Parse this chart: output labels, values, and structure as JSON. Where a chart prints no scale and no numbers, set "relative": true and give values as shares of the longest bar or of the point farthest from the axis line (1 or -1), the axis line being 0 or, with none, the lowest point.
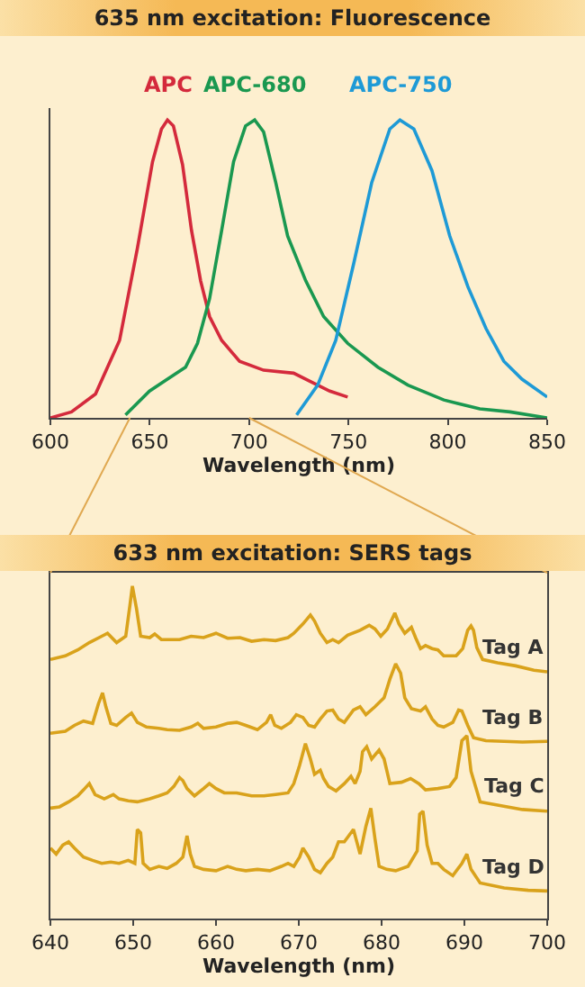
{
  "chart_data": [
    {
      "type": "line",
      "title": "635 nm excitation: Fluorescence",
      "xlabel": "Wavelength (nm)",
      "relative": true,
      "xlim": [
        600,
        850
      ],
      "xticks": [
        600,
        650,
        700,
        750,
        800,
        850
      ],
      "series": [
        {
          "name": "APC",
          "color": "#d42a3c",
          "x": [
            600,
            610.6,
            622.7,
            634.8,
            643.8,
            651.4,
            655.9,
            658.9,
            661.9,
            666.5,
            671,
            675.6,
            680.1,
            686.2,
            695.2,
            707.3,
            722.4,
            731.5,
            740.6,
            749.6
          ],
          "values": [
            0,
            0.02,
            0.08,
            0.26,
            0.57,
            0.86,
            0.97,
            1,
            0.98,
            0.85,
            0.63,
            0.46,
            0.34,
            0.26,
            0.19,
            0.16,
            0.15,
            0.12,
            0.09,
            0.07
          ]
        },
        {
          "name": "APC-680",
          "color": "#1a9850",
          "x": [
            637.8,
            649.9,
            658.9,
            668,
            674,
            680.1,
            686.2,
            692.2,
            698.2,
            702.8,
            707.3,
            713.4,
            719.4,
            728.5,
            737.5,
            749.6,
            764.8,
            779.9,
            798,
            816.1,
            831.3,
            850
          ],
          "values": [
            0.01,
            0.09,
            0.13,
            0.17,
            0.25,
            0.4,
            0.63,
            0.86,
            0.98,
            1,
            0.96,
            0.79,
            0.61,
            0.46,
            0.34,
            0.25,
            0.17,
            0.11,
            0.06,
            0.03,
            0.02,
            0
          ]
        },
        {
          "name": "APC-750",
          "color": "#1e9ad6",
          "x": [
            723.9,
            734.5,
            743.6,
            752.7,
            761.7,
            770.8,
            775.9,
            782.9,
            792,
            801,
            810.1,
            819.2,
            828.2,
            837.3,
            850
          ],
          "values": [
            0.01,
            0.11,
            0.26,
            0.52,
            0.79,
            0.97,
            1,
            0.97,
            0.83,
            0.61,
            0.44,
            0.3,
            0.19,
            0.13,
            0.07
          ]
        }
      ]
    },
    {
      "type": "line",
      "title": "633 nm excitation: SERS tags",
      "xlabel": "Wavelength (nm)",
      "relative": true,
      "xlim": [
        640,
        700
      ],
      "xticks": [
        640,
        650,
        660,
        670,
        680,
        690,
        700
      ],
      "series": [
        {
          "name": "Tag A",
          "color": "#d9a21b",
          "x": [
            640,
            641.8,
            643.3,
            644.7,
            646.2,
            646.9,
            648,
            649.1,
            649.6,
            649.9,
            650.4,
            650.9,
            652,
            652.6,
            653.4,
            655.6,
            657,
            658.5,
            660,
            661.4,
            662.9,
            664.3,
            665.8,
            667.2,
            668.7,
            669.4,
            670.5,
            671.4,
            671.9,
            672.6,
            673.4,
            674.1,
            674.8,
            675.9,
            677.4,
            678.5,
            679.2,
            679.9,
            680.7,
            681.6,
            682.1,
            682.8,
            683.6,
            684.1,
            684.7,
            685.3,
            686.1,
            686.8,
            687.5,
            689,
            689.8,
            690.4,
            690.8,
            691.1,
            691.5,
            692.2,
            694,
            696.2,
            698.4,
            700
          ],
          "values": [
            0.779,
            0.79,
            0.808,
            0.83,
            0.849,
            0.858,
            0.83,
            0.849,
            0.941,
            1,
            0.932,
            0.849,
            0.845,
            0.856,
            0.839,
            0.839,
            0.849,
            0.845,
            0.858,
            0.843,
            0.845,
            0.834,
            0.839,
            0.836,
            0.845,
            0.858,
            0.886,
            0.913,
            0.895,
            0.858,
            0.83,
            0.839,
            0.83,
            0.852,
            0.867,
            0.882,
            0.871,
            0.849,
            0.871,
            0.919,
            0.886,
            0.858,
            0.876,
            0.845,
            0.812,
            0.821,
            0.812,
            0.808,
            0.79,
            0.79,
            0.812,
            0.867,
            0.88,
            0.867,
            0.815,
            0.779,
            0.769,
            0.76,
            0.747,
            0.742
          ]
        },
        {
          "name": "Tag B",
          "color": "#d9a21b",
          "x": [
            640,
            641.8,
            642.9,
            644,
            645.1,
            645.8,
            646.3,
            646.7,
            647.3,
            648,
            649.1,
            649.8,
            650.5,
            651.6,
            653.1,
            654.1,
            655.6,
            657,
            657.8,
            658.5,
            660,
            661.4,
            662.5,
            663.6,
            665,
            666.1,
            666.6,
            667.1,
            667.9,
            669,
            669.7,
            670.5,
            671.2,
            671.9,
            672.6,
            673.4,
            674.1,
            674.8,
            675.5,
            676.6,
            677.4,
            678.1,
            679.2,
            680.3,
            681,
            681.7,
            682.3,
            682.8,
            683.6,
            684.7,
            685.3,
            686.1,
            686.8,
            687.5,
            688.6,
            689.3,
            689.7,
            690.4,
            691.1,
            692.6,
            694.8,
            697,
            700
          ],
          "values": [
            0.557,
            0.563,
            0.581,
            0.594,
            0.587,
            0.646,
            0.679,
            0.637,
            0.587,
            0.581,
            0.605,
            0.618,
            0.59,
            0.576,
            0.572,
            0.568,
            0.566,
            0.576,
            0.587,
            0.572,
            0.576,
            0.587,
            0.59,
            0.581,
            0.568,
            0.59,
            0.613,
            0.581,
            0.572,
            0.59,
            0.613,
            0.605,
            0.581,
            0.576,
            0.6,
            0.624,
            0.627,
            0.6,
            0.59,
            0.627,
            0.637,
            0.613,
            0.637,
            0.664,
            0.72,
            0.766,
            0.738,
            0.664,
            0.631,
            0.624,
            0.637,
            0.6,
            0.581,
            0.576,
            0.59,
            0.627,
            0.624,
            0.581,
            0.544,
            0.535,
            0.533,
            0.531,
            0.533
          ]
        },
        {
          "name": "Tag C",
          "color": "#d9a21b",
          "x": [
            640,
            641.1,
            642.2,
            643.3,
            644,
            644.7,
            645.4,
            646.5,
            647.6,
            648.3,
            649.4,
            650.5,
            652,
            653.1,
            654.1,
            654.9,
            655.6,
            656,
            656.5,
            657.4,
            658.5,
            659.2,
            660,
            661,
            662.5,
            664.3,
            665.8,
            667.2,
            668.7,
            669.4,
            670.1,
            670.8,
            671.4,
            671.9,
            672.6,
            673,
            673.6,
            674.5,
            675.5,
            676.3,
            676.8,
            677.4,
            677.7,
            678.2,
            678.8,
            679.7,
            680.3,
            681,
            682.4,
            683.5,
            684.5,
            685.3,
            686.8,
            688.2,
            689,
            689.7,
            690.3,
            690.8,
            691.9,
            694,
            697,
            700
          ],
          "values": [
            0.332,
            0.336,
            0.351,
            0.369,
            0.387,
            0.406,
            0.373,
            0.36,
            0.373,
            0.36,
            0.354,
            0.351,
            0.36,
            0.369,
            0.378,
            0.397,
            0.424,
            0.415,
            0.391,
            0.369,
            0.391,
            0.406,
            0.391,
            0.378,
            0.378,
            0.369,
            0.369,
            0.373,
            0.378,
            0.406,
            0.461,
            0.526,
            0.48,
            0.434,
            0.446,
            0.421,
            0.397,
            0.384,
            0.406,
            0.428,
            0.406,
            0.443,
            0.502,
            0.517,
            0.48,
            0.507,
            0.48,
            0.406,
            0.41,
            0.421,
            0.406,
            0.387,
            0.391,
            0.397,
            0.424,
            0.535,
            0.55,
            0.443,
            0.351,
            0.341,
            0.328,
            0.323
          ]
        },
        {
          "name": "Tag D",
          "color": "#d9a21b",
          "x": [
            640,
            640.7,
            641.5,
            642.2,
            642.9,
            644,
            645.1,
            646.2,
            647.3,
            648.3,
            649.4,
            650.2,
            650.5,
            650.9,
            651.2,
            652,
            653.1,
            654.1,
            655.2,
            656,
            656.5,
            656.9,
            657.4,
            658.5,
            660,
            661.4,
            662.5,
            663.6,
            665,
            666.5,
            667.9,
            668.7,
            669.4,
            670.1,
            670.5,
            671.2,
            671.9,
            672.6,
            673.4,
            674.1,
            674.8,
            675.5,
            676.6,
            677.4,
            678.1,
            678.7,
            679.2,
            679.7,
            680.6,
            681.7,
            683.2,
            684.3,
            684.6,
            685,
            685.5,
            686.1,
            686.8,
            687.5,
            688.6,
            689.7,
            690.3,
            690.8,
            691.9,
            694.8,
            697.7,
            700
          ],
          "values": [
            0.212,
            0.194,
            0.221,
            0.231,
            0.212,
            0.185,
            0.175,
            0.166,
            0.17,
            0.166,
            0.175,
            0.166,
            0.268,
            0.258,
            0.166,
            0.148,
            0.157,
            0.151,
            0.166,
            0.185,
            0.249,
            0.194,
            0.157,
            0.148,
            0.144,
            0.157,
            0.148,
            0.144,
            0.148,
            0.144,
            0.157,
            0.166,
            0.157,
            0.185,
            0.212,
            0.185,
            0.148,
            0.138,
            0.166,
            0.185,
            0.231,
            0.231,
            0.268,
            0.194,
            0.277,
            0.332,
            0.24,
            0.157,
            0.148,
            0.144,
            0.157,
            0.203,
            0.314,
            0.323,
            0.221,
            0.166,
            0.166,
            0.148,
            0.129,
            0.166,
            0.194,
            0.148,
            0.107,
            0.092,
            0.085,
            0.083
          ]
        }
      ]
    }
  ]
}
